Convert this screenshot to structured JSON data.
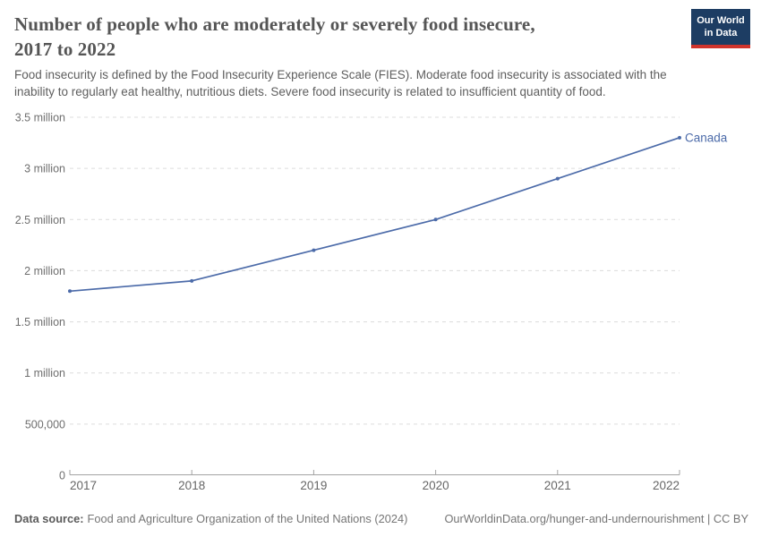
{
  "header": {
    "title_lines": [
      "Number of people who are moderately or severely food insecure,",
      "2017 to 2022"
    ],
    "subtitle_lines": [
      "Food insecurity is defined by the Food Insecurity Experience Scale (FIES). Moderate food insecurity is associated with the",
      "inability to regularly eat healthy, nutritious diets. Severe food insecurity is related to insufficient quantity of food."
    ]
  },
  "logo": {
    "line1": "Our World",
    "line2": "in Data",
    "bg_color": "#1d3d63",
    "accent_color": "#d0342c"
  },
  "chart_data": {
    "type": "line",
    "title": "Number of people who are moderately or severely food insecure, 2017 to 2022",
    "x": [
      2017,
      2018,
      2019,
      2020,
      2021,
      2022
    ],
    "series": [
      {
        "name": "Canada",
        "values": [
          1800000,
          1900000,
          2200000,
          2500000,
          2900000,
          3300000
        ],
        "color": "#4c6ba9"
      }
    ],
    "ylim": [
      0,
      3500000
    ],
    "yticks": [
      {
        "value": 0,
        "label": "0"
      },
      {
        "value": 500000,
        "label": "500,000"
      },
      {
        "value": 1000000,
        "label": "1 million"
      },
      {
        "value": 1500000,
        "label": "1.5 million"
      },
      {
        "value": 2000000,
        "label": "2 million"
      },
      {
        "value": 2500000,
        "label": "2.5 million"
      },
      {
        "value": 3000000,
        "label": "3 million"
      },
      {
        "value": 3500000,
        "label": "3.5 million"
      }
    ],
    "grid": "horizontal-dashed",
    "legend": "end-of-line-label",
    "colors": {
      "gridline": "#dcdcdc",
      "axis": "#a3a3a3",
      "tick_label": "#6e6e6e",
      "year_label": "#666666"
    }
  },
  "footer": {
    "source_label": "Data source:",
    "source_text": "Food and Agriculture Organization of the United Nations (2024)",
    "link_text": "OurWorldinData.org/hunger-and-undernourishment | CC BY"
  }
}
